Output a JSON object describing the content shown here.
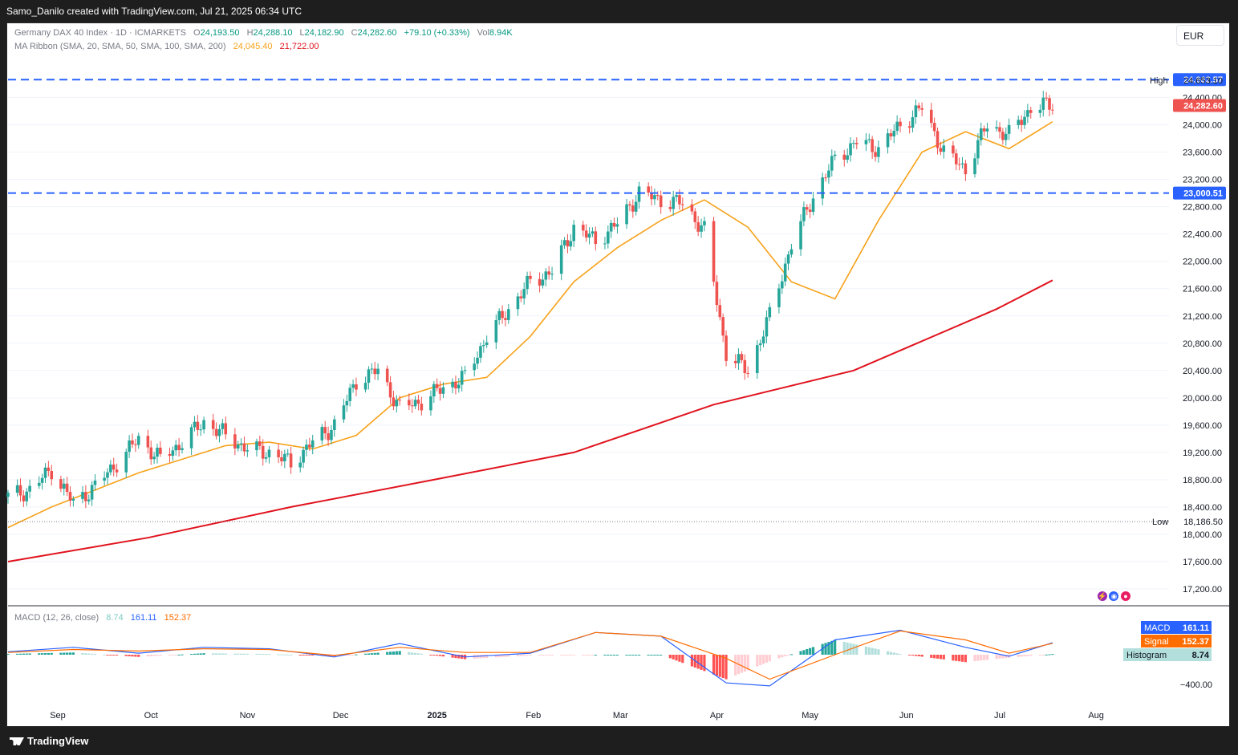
{
  "header": {
    "attribution": "Samo_Danilo created with TradingView.com, Jul 21, 2025 06:34 UTC"
  },
  "legend": {
    "symbol": "Germany DAX 40 Index · 1D · ICMARKETS",
    "o_label": "O",
    "o": "24,193.50",
    "h_label": "H",
    "h": "24,288.10",
    "l_label": "L",
    "l": "24,182.90",
    "c_label": "C",
    "c": "24,282.60",
    "change": "+79.10 (+0.33%)",
    "vol_label": "Vol",
    "vol": "8.94K",
    "ma_title": "MA Ribbon (SMA, 20, SMA, 50, SMA, 100, SMA, 200)",
    "ma_v1": "24,045.40",
    "ma_v2": "21,722.00",
    "macd_title": "MACD (12, 26, close)",
    "macd_hist": "8.74",
    "macd_line": "161.11",
    "macd_signal": "152.37"
  },
  "currency": "EUR",
  "colors": {
    "up": "#26a69a",
    "down": "#ef5350",
    "ma20": "#f7a21b",
    "ma200": "#e0131e",
    "hline": "#2962ff",
    "macd": "#2962ff",
    "signal": "#ff6d00",
    "hist_up_strong": "#26a69a",
    "hist_up_weak": "#b2dfdb",
    "hist_down_strong": "#ff5252",
    "hist_down_weak": "#ffcdd2"
  },
  "price_axis": {
    "ticks": [
      "24,400.00",
      "24,000.00",
      "23,600.00",
      "23,200.00",
      "22,800.00",
      "22,400.00",
      "22,000.00",
      "21,600.00",
      "21,200.00",
      "20,800.00",
      "20,400.00",
      "20,000.00",
      "19,600.00",
      "19,200.00",
      "18,800.00",
      "18,400.00",
      "18,000.00",
      "17,600.00",
      "17,200.00"
    ],
    "tick_values": [
      24400,
      24000,
      23600,
      23200,
      22800,
      22400,
      22000,
      21600,
      21200,
      20800,
      20400,
      20000,
      19600,
      19200,
      18800,
      18400,
      18000,
      17600,
      17200
    ]
  },
  "markers": {
    "hline_top": "24,662.57",
    "high_label": "High",
    "high_value": "24,653.10",
    "last_price": "24,282.60",
    "hline_bottom": "23,000.51",
    "low_label": "Low",
    "low_value": "18,186.50"
  },
  "macd_axis": {
    "tick": "−400.00",
    "tick_value": -400
  },
  "macd_labels": {
    "macd_label": "MACD",
    "macd_value": "161.11",
    "signal_label": "Signal",
    "signal_value": "152.37",
    "hist_label": "Histogram",
    "hist_value": "8.74"
  },
  "time_axis": [
    "Sep",
    "Oct",
    "Nov",
    "Dec",
    "2025",
    "Feb",
    "Mar",
    "Apr",
    "May",
    "Jun",
    "Jul",
    "Aug"
  ],
  "footer": {
    "brand": "TradingView"
  },
  "chart_data": {
    "type": "candlestick",
    "title": "Germany DAX 40 Index · 1D · ICMARKETS",
    "ylim": [
      17000,
      24750
    ],
    "x_range": [
      "2024-08-16",
      "2025-08-18"
    ],
    "horizontal_lines": [
      24662.57,
      23000.51
    ],
    "high": 24653.1,
    "low": 18186.5,
    "close_path": [
      [
        "2024-08-16",
        18550
      ],
      [
        "2024-08-23",
        18650
      ],
      [
        "2024-08-30",
        18950
      ],
      [
        "2024-09-06",
        18450
      ],
      [
        "2024-09-13",
        18700
      ],
      [
        "2024-09-20",
        19050
      ],
      [
        "2024-09-27",
        19400
      ],
      [
        "2024-10-04",
        19100
      ],
      [
        "2024-10-11",
        19350
      ],
      [
        "2024-10-18",
        19650
      ],
      [
        "2024-10-25",
        19450
      ],
      [
        "2024-11-01",
        19250
      ],
      [
        "2024-11-08",
        19200
      ],
      [
        "2024-11-15",
        19050
      ],
      [
        "2024-11-22",
        19350
      ],
      [
        "2024-11-29",
        19600
      ],
      [
        "2024-12-06",
        20250
      ],
      [
        "2024-12-13",
        20400
      ],
      [
        "2024-12-20",
        19850
      ],
      [
        "2024-12-27",
        19950
      ],
      [
        "2025-01-03",
        20150
      ],
      [
        "2025-01-10",
        20300
      ],
      [
        "2025-01-17",
        20900
      ],
      [
        "2025-01-24",
        21300
      ],
      [
        "2025-01-31",
        21700
      ],
      [
        "2025-02-07",
        21850
      ],
      [
        "2025-02-14",
        22500
      ],
      [
        "2025-02-21",
        22300
      ],
      [
        "2025-02-28",
        22550
      ],
      [
        "2025-03-07",
        23000
      ],
      [
        "2025-03-14",
        22900
      ],
      [
        "2025-03-21",
        22850
      ],
      [
        "2025-03-28",
        22450
      ],
      [
        "2025-04-04",
        20650
      ],
      [
        "2025-04-11",
        20400
      ],
      [
        "2025-04-18",
        21200
      ],
      [
        "2025-04-25",
        22250
      ],
      [
        "2025-05-02",
        22950
      ],
      [
        "2025-05-09",
        23500
      ],
      [
        "2025-05-16",
        23750
      ],
      [
        "2025-05-23",
        23650
      ],
      [
        "2025-05-30",
        24000
      ],
      [
        "2025-06-06",
        24250
      ],
      [
        "2025-06-13",
        23600
      ],
      [
        "2025-06-20",
        23350
      ],
      [
        "2025-06-27",
        24000
      ],
      [
        "2025-07-04",
        23850
      ],
      [
        "2025-07-11",
        24250
      ],
      [
        "2025-07-18",
        24300
      ]
    ],
    "sma20": [
      [
        "2024-08-16",
        18100
      ],
      [
        "2024-08-30",
        18400
      ],
      [
        "2024-09-13",
        18650
      ],
      [
        "2024-09-27",
        18900
      ],
      [
        "2024-10-11",
        19100
      ],
      [
        "2024-10-25",
        19300
      ],
      [
        "2024-11-08",
        19350
      ],
      [
        "2024-11-22",
        19250
      ],
      [
        "2024-12-06",
        19450
      ],
      [
        "2024-12-20",
        20000
      ],
      [
        "2025-01-03",
        20200
      ],
      [
        "2025-01-17",
        20300
      ],
      [
        "2025-01-31",
        20900
      ],
      [
        "2025-02-14",
        21700
      ],
      [
        "2025-02-28",
        22200
      ],
      [
        "2025-03-14",
        22600
      ],
      [
        "2025-03-28",
        22900
      ],
      [
        "2025-04-11",
        22500
      ],
      [
        "2025-04-25",
        21700
      ],
      [
        "2025-05-09",
        21450
      ],
      [
        "2025-05-23",
        22600
      ],
      [
        "2025-06-06",
        23600
      ],
      [
        "2025-06-20",
        23900
      ],
      [
        "2025-07-04",
        23650
      ],
      [
        "2025-07-18",
        24045.4
      ]
    ],
    "sma200": [
      [
        "2024-08-16",
        17600
      ],
      [
        "2024-09-30",
        17950
      ],
      [
        "2024-11-15",
        18400
      ],
      [
        "2024-12-31",
        18800
      ],
      [
        "2025-02-14",
        19200
      ],
      [
        "2025-03-31",
        19900
      ],
      [
        "2025-05-15",
        20400
      ],
      [
        "2025-06-30",
        21300
      ],
      [
        "2025-07-18",
        21722.0
      ]
    ],
    "macd": [
      [
        "2024-08-16",
        40
      ],
      [
        "2024-09-06",
        100
      ],
      [
        "2024-09-27",
        20
      ],
      [
        "2024-10-18",
        100
      ],
      [
        "2024-11-08",
        80
      ],
      [
        "2024-11-29",
        -30
      ],
      [
        "2024-12-20",
        150
      ],
      [
        "2025-01-10",
        -30
      ],
      [
        "2025-01-31",
        20
      ],
      [
        "2025-02-21",
        300
      ],
      [
        "2025-03-14",
        250
      ],
      [
        "2025-04-04",
        -380
      ],
      [
        "2025-04-18",
        -420
      ],
      [
        "2025-05-09",
        200
      ],
      [
        "2025-05-30",
        330
      ],
      [
        "2025-06-20",
        100
      ],
      [
        "2025-07-04",
        -20
      ],
      [
        "2025-07-18",
        161.11
      ]
    ],
    "signal": [
      [
        "2024-08-16",
        30
      ],
      [
        "2024-09-06",
        70
      ],
      [
        "2024-09-27",
        50
      ],
      [
        "2024-10-18",
        80
      ],
      [
        "2024-11-08",
        70
      ],
      [
        "2024-11-29",
        -10
      ],
      [
        "2024-12-20",
        100
      ],
      [
        "2025-01-10",
        30
      ],
      [
        "2025-01-31",
        30
      ],
      [
        "2025-02-21",
        300
      ],
      [
        "2025-03-14",
        250
      ],
      [
        "2025-04-04",
        -50
      ],
      [
        "2025-04-18",
        -330
      ],
      [
        "2025-05-09",
        0
      ],
      [
        "2025-05-30",
        320
      ],
      [
        "2025-06-20",
        200
      ],
      [
        "2025-07-04",
        20
      ],
      [
        "2025-07-18",
        152.37
      ]
    ]
  }
}
